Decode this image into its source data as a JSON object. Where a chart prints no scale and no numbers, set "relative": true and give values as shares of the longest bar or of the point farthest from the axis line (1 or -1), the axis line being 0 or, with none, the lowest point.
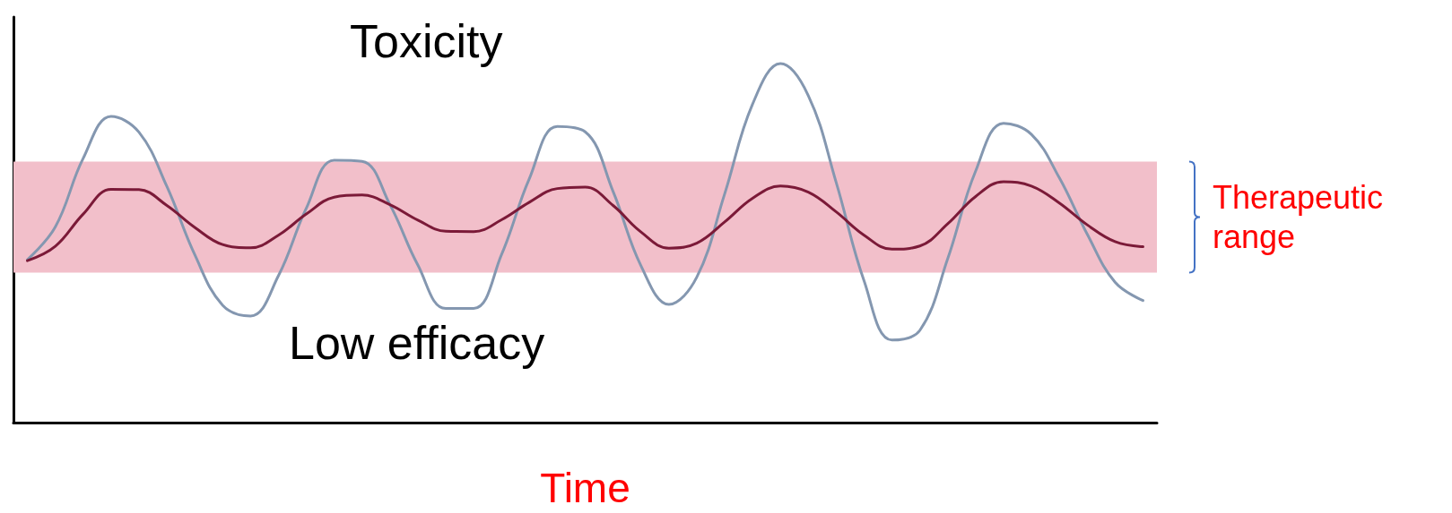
{
  "chart_data": {
    "type": "line",
    "relative": true,
    "xlabel": "Time",
    "grid": false,
    "marker": "none",
    "line_style": "solid",
    "categories": [
      null,
      null,
      null,
      null,
      null,
      null,
      null,
      null,
      null,
      null,
      null,
      null,
      null,
      null,
      null,
      null,
      null,
      null,
      null,
      null,
      null,
      null,
      null,
      null,
      null,
      null,
      null,
      null,
      null,
      null,
      null,
      null,
      null,
      null,
      null,
      null,
      null,
      null,
      null,
      null,
      null
    ],
    "series": [
      {
        "color": "#8497b0",
        "values": [
          0.454,
          0.545,
          0.736,
          0.853,
          0.809,
          0.658,
          0.468,
          0.327,
          0.297,
          0.409,
          0.597,
          0.731,
          0.728,
          0.607,
          0.439,
          0.318,
          0.318,
          0.468,
          0.68,
          0.825,
          0.81,
          0.644,
          0.437,
          0.329,
          0.405,
          0.637,
          0.887,
          1.0,
          0.911,
          0.669,
          0.395,
          0.23,
          0.257,
          0.457,
          0.701,
          0.834,
          0.803,
          0.682,
          0.525,
          0.391,
          0.34
        ]
      },
      {
        "color": "#7b1a38",
        "values": [
          0.451,
          0.491,
          0.581,
          0.65,
          0.649,
          0.605,
          0.544,
          0.496,
          0.487,
          0.522,
          0.581,
          0.628,
          0.634,
          0.607,
          0.564,
          0.533,
          0.532,
          0.565,
          0.614,
          0.652,
          0.656,
          0.605,
          0.531,
          0.486,
          0.5,
          0.559,
          0.625,
          0.659,
          0.642,
          0.587,
          0.522,
          0.483,
          0.492,
          0.554,
          0.63,
          0.671,
          0.659,
          0.612,
          0.551,
          0.504,
          0.49
        ]
      }
    ],
    "bands": [
      {
        "axis": "y",
        "from": 0.418,
        "to": 0.727,
        "label": "Therapeutic range",
        "color": "#f2bfca"
      }
    ],
    "annotations": [
      "Toxicity",
      "Low efficacy"
    ]
  }
}
